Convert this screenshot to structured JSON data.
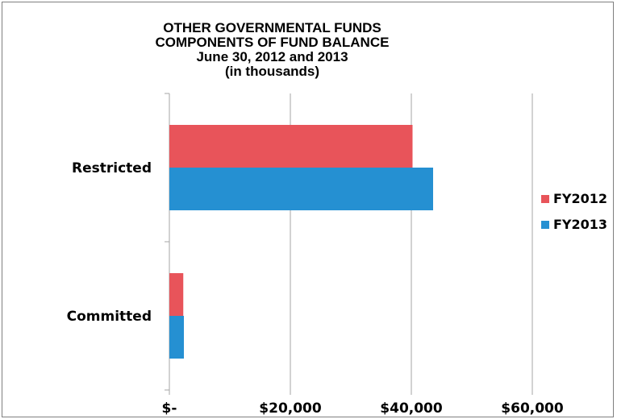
{
  "chart_data": {
    "type": "bar",
    "orientation": "horizontal",
    "title_lines": [
      "OTHER GOVERNMENTAL FUNDS",
      "COMPONENTS OF FUND BALANCE",
      "June 30, 2012 and 2013",
      "(in thousands)"
    ],
    "categories": [
      "Restricted",
      "Committed"
    ],
    "series": [
      {
        "name": "FY2012",
        "color": "#e8545a",
        "values": [
          40200,
          2300
        ]
      },
      {
        "name": "FY2013",
        "color": "#2590d2",
        "values": [
          43600,
          2400
        ]
      }
    ],
    "xlim": [
      0,
      60000
    ],
    "x_ticks": [
      0,
      20000,
      40000,
      60000
    ],
    "x_tick_labels": [
      "$-",
      "$20,000",
      "$40,000",
      "$60,000"
    ],
    "grid": true,
    "legend_position": "right"
  }
}
